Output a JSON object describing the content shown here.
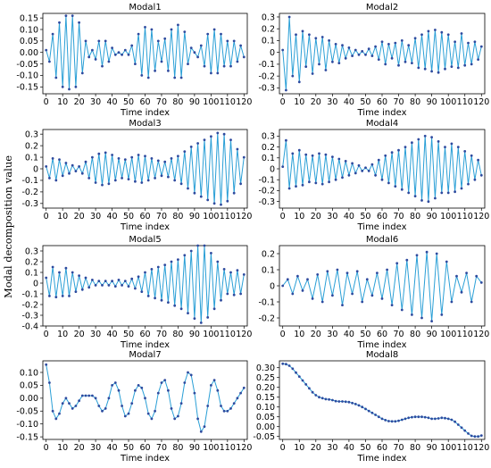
{
  "figure": {
    "ylabel": "Modal decomposition value"
  },
  "chart_data": [
    {
      "type": "line",
      "title": "Modal1",
      "xlabel": "Time index",
      "ylim": [
        -0.18,
        0.17
      ],
      "xticks": [
        0,
        10,
        20,
        30,
        40,
        50,
        60,
        70,
        80,
        90,
        100,
        110,
        120
      ],
      "yticks": [
        -0.15,
        -0.1,
        -0.05,
        0.0,
        0.05,
        0.1,
        0.15
      ],
      "ytick_labels": [
        "-0.15",
        "-0.10",
        "-0.05",
        "0.00",
        "0.05",
        "0.10",
        "0.15"
      ],
      "x": [
        0,
        2,
        4,
        6,
        8,
        10,
        12,
        14,
        16,
        18,
        20,
        22,
        24,
        26,
        28,
        30,
        32,
        34,
        36,
        38,
        40,
        42,
        44,
        46,
        48,
        50,
        52,
        54,
        56,
        58,
        60,
        62,
        64,
        66,
        68,
        70,
        72,
        74,
        76,
        78,
        80,
        82,
        84,
        86,
        88,
        90,
        92,
        94,
        96,
        98,
        100,
        102,
        104,
        106,
        108,
        110,
        112,
        114,
        116,
        118,
        120
      ],
      "y": [
        0.01,
        -0.04,
        0.08,
        -0.11,
        0.13,
        -0.15,
        0.16,
        -0.16,
        0.16,
        -0.15,
        0.13,
        -0.09,
        0.05,
        -0.02,
        0.01,
        -0.03,
        0.05,
        -0.06,
        0.05,
        -0.04,
        0.02,
        -0.01,
        0.0,
        -0.01,
        0.01,
        -0.01,
        0.03,
        -0.05,
        0.08,
        -0.1,
        0.11,
        -0.11,
        0.1,
        -0.08,
        0.05,
        -0.04,
        0.06,
        -0.08,
        0.1,
        -0.11,
        0.12,
        -0.11,
        0.09,
        -0.05,
        0.02,
        -0.0,
        -0.02,
        0.03,
        -0.06,
        0.08,
        -0.09,
        0.1,
        -0.09,
        0.08,
        -0.06,
        0.05,
        -0.06,
        0.05,
        -0.04,
        0.03,
        -0.02
      ]
    },
    {
      "type": "line",
      "title": "Modal2",
      "xlabel": "Time index",
      "ylim": [
        -0.35,
        0.33
      ],
      "xticks": [
        0,
        10,
        20,
        30,
        40,
        50,
        60,
        70,
        80,
        90,
        100,
        110,
        120
      ],
      "yticks": [
        -0.3,
        -0.2,
        -0.1,
        0,
        0.1,
        0.2,
        0.3
      ],
      "ytick_labels": [
        "-0.3",
        "-0.2",
        "-0.1",
        "0",
        "0.1",
        "0.2",
        "0.3"
      ],
      "x": [
        0,
        2,
        4,
        6,
        8,
        10,
        12,
        14,
        16,
        18,
        20,
        22,
        24,
        26,
        28,
        30,
        32,
        34,
        36,
        38,
        40,
        42,
        44,
        46,
        48,
        50,
        52,
        54,
        56,
        58,
        60,
        62,
        64,
        66,
        68,
        70,
        72,
        74,
        76,
        78,
        80,
        82,
        84,
        86,
        88,
        90,
        92,
        94,
        96,
        98,
        100,
        102,
        104,
        106,
        108,
        110,
        112,
        114,
        116,
        118,
        120
      ],
      "y": [
        0.02,
        -0.32,
        0.3,
        -0.2,
        0.15,
        -0.25,
        0.18,
        -0.12,
        0.15,
        -0.18,
        0.12,
        -0.1,
        0.13,
        -0.15,
        0.1,
        -0.08,
        0.07,
        -0.09,
        0.06,
        -0.05,
        0.04,
        -0.03,
        0.02,
        -0.02,
        0.01,
        -0.02,
        0.03,
        -0.03,
        0.05,
        -0.06,
        0.09,
        -0.1,
        0.07,
        -0.05,
        0.08,
        -0.11,
        0.1,
        -0.08,
        0.06,
        -0.09,
        0.12,
        -0.13,
        0.15,
        -0.14,
        0.18,
        -0.16,
        0.19,
        -0.17,
        0.17,
        -0.14,
        0.15,
        -0.12,
        0.09,
        -0.13,
        0.16,
        -0.11,
        0.08,
        -0.1,
        0.09,
        -0.06,
        0.05
      ]
    },
    {
      "type": "line",
      "title": "Modal3",
      "xlabel": "Time index",
      "ylim": [
        -0.34,
        0.34
      ],
      "xticks": [
        0,
        10,
        20,
        30,
        40,
        50,
        60,
        70,
        80,
        90,
        100,
        110,
        120
      ],
      "yticks": [
        -0.3,
        -0.2,
        -0.1,
        0,
        0.1,
        0.2,
        0.3
      ],
      "ytick_labels": [
        "-0.3",
        "-0.2",
        "-0.1",
        "0",
        "0.1",
        "0.2",
        "0.3"
      ],
      "x": [
        0,
        2,
        4,
        6,
        8,
        10,
        12,
        14,
        16,
        18,
        20,
        22,
        24,
        26,
        28,
        30,
        32,
        34,
        36,
        38,
        40,
        42,
        44,
        46,
        48,
        50,
        52,
        54,
        56,
        58,
        60,
        62,
        64,
        66,
        68,
        70,
        72,
        74,
        76,
        78,
        80,
        82,
        84,
        86,
        88,
        90,
        92,
        94,
        96,
        98,
        100,
        102,
        104,
        106,
        108,
        110,
        112,
        114,
        116,
        118,
        120
      ],
      "y": [
        0.02,
        -0.08,
        0.09,
        -0.1,
        0.08,
        -0.06,
        0.05,
        -0.04,
        0.03,
        -0.02,
        0.02,
        -0.04,
        0.06,
        -0.08,
        0.1,
        -0.12,
        0.13,
        -0.14,
        0.14,
        -0.13,
        0.12,
        -0.1,
        0.09,
        -0.08,
        0.08,
        -0.09,
        0.1,
        -0.11,
        0.12,
        -0.12,
        0.11,
        -0.1,
        0.09,
        -0.08,
        0.07,
        -0.06,
        0.06,
        -0.07,
        0.09,
        -0.1,
        0.11,
        -0.13,
        0.15,
        -0.17,
        0.19,
        -0.21,
        0.22,
        -0.24,
        0.25,
        -0.27,
        0.28,
        -0.3,
        0.31,
        -0.31,
        0.3,
        -0.28,
        0.25,
        -0.21,
        0.17,
        -0.13,
        0.1
      ]
    },
    {
      "type": "line",
      "title": "Modal4",
      "xlabel": "Time index",
      "ylim": [
        -0.36,
        0.36
      ],
      "xticks": [
        0,
        10,
        20,
        30,
        40,
        50,
        60,
        70,
        80,
        90,
        100,
        110,
        120
      ],
      "yticks": [
        -0.3,
        -0.2,
        -0.1,
        0,
        0.1,
        0.2,
        0.3
      ],
      "ytick_labels": [
        "-0.3",
        "-0.2",
        "-0.1",
        "0",
        "0.1",
        "0.2",
        "0.3"
      ],
      "x": [
        0,
        2,
        4,
        6,
        8,
        10,
        12,
        14,
        16,
        18,
        20,
        22,
        24,
        26,
        28,
        30,
        32,
        34,
        36,
        38,
        40,
        42,
        44,
        46,
        48,
        50,
        52,
        54,
        56,
        58,
        60,
        62,
        64,
        66,
        68,
        70,
        72,
        74,
        76,
        78,
        80,
        82,
        84,
        86,
        88,
        90,
        92,
        94,
        96,
        98,
        100,
        102,
        104,
        106,
        108,
        110,
        112,
        114,
        116,
        118,
        120
      ],
      "y": [
        0.02,
        0.26,
        -0.18,
        0.14,
        -0.16,
        0.17,
        -0.15,
        0.13,
        -0.12,
        0.12,
        -0.13,
        0.14,
        -0.14,
        0.13,
        -0.12,
        0.11,
        -0.1,
        0.09,
        -0.08,
        0.07,
        -0.06,
        0.05,
        -0.04,
        0.03,
        -0.02,
        0.01,
        -0.02,
        0.04,
        -0.06,
        0.08,
        -0.1,
        0.12,
        -0.13,
        0.15,
        -0.16,
        0.17,
        -0.19,
        0.2,
        -0.22,
        0.24,
        -0.25,
        0.27,
        -0.29,
        0.3,
        -0.3,
        0.29,
        -0.27,
        0.25,
        -0.22,
        0.2,
        -0.22,
        0.23,
        -0.21,
        0.2,
        -0.18,
        0.16,
        -0.14,
        0.12,
        -0.1,
        0.08,
        -0.06
      ]
    },
    {
      "type": "line",
      "title": "Modal5",
      "xlabel": "Time index",
      "ylim": [
        -0.4,
        0.35
      ],
      "xticks": [
        0,
        10,
        20,
        30,
        40,
        50,
        60,
        70,
        80,
        90,
        100,
        110,
        120
      ],
      "yticks": [
        -0.4,
        -0.3,
        -0.2,
        -0.1,
        0,
        0.1,
        0.2,
        0.3
      ],
      "ytick_labels": [
        "-0.4",
        "-0.3",
        "-0.2",
        "-0.1",
        "0",
        "0.1",
        "0.2",
        "0.3"
      ],
      "x": [
        0,
        2,
        4,
        6,
        8,
        10,
        12,
        14,
        16,
        18,
        20,
        22,
        24,
        26,
        28,
        30,
        32,
        34,
        36,
        38,
        40,
        42,
        44,
        46,
        48,
        50,
        52,
        54,
        56,
        58,
        60,
        62,
        64,
        66,
        68,
        70,
        72,
        74,
        76,
        78,
        80,
        82,
        84,
        86,
        88,
        90,
        92,
        94,
        96,
        98,
        100,
        102,
        104,
        106,
        108,
        110,
        112,
        114,
        116,
        118,
        120
      ],
      "y": [
        0.05,
        -0.12,
        0.15,
        -0.13,
        0.1,
        -0.12,
        0.14,
        -0.12,
        0.1,
        -0.08,
        0.07,
        -0.06,
        0.05,
        -0.04,
        0.03,
        -0.02,
        0.02,
        -0.02,
        0.02,
        -0.02,
        0.02,
        -0.03,
        0.03,
        -0.02,
        0.02,
        -0.03,
        0.04,
        -0.05,
        0.06,
        -0.08,
        0.1,
        -0.12,
        0.13,
        -0.14,
        0.15,
        -0.16,
        0.17,
        -0.18,
        0.2,
        -0.21,
        0.22,
        -0.24,
        0.26,
        -0.28,
        0.3,
        -0.33,
        0.35,
        -0.37,
        0.35,
        -0.32,
        0.28,
        -0.24,
        0.2,
        -0.16,
        0.13,
        -0.1,
        0.1,
        -0.11,
        0.12,
        -0.1,
        0.08
      ]
    },
    {
      "type": "line",
      "title": "Modal6",
      "xlabel": "Time index",
      "ylim": [
        -0.25,
        0.25
      ],
      "xticks": [
        0,
        10,
        20,
        30,
        40,
        50,
        60,
        70,
        80,
        90,
        100,
        110,
        120
      ],
      "yticks": [
        -0.2,
        -0.1,
        0,
        0.1,
        0.2
      ],
      "ytick_labels": [
        "-0.2",
        "-0.1",
        "0",
        "0.1",
        "0.2"
      ],
      "x": [
        0,
        3,
        6,
        9,
        12,
        15,
        18,
        21,
        24,
        27,
        30,
        33,
        36,
        39,
        42,
        45,
        48,
        51,
        54,
        57,
        60,
        63,
        66,
        69,
        72,
        75,
        78,
        81,
        84,
        87,
        90,
        93,
        96,
        99,
        102,
        105,
        108,
        111,
        114,
        117,
        120
      ],
      "y": [
        0.0,
        0.04,
        -0.05,
        0.06,
        -0.03,
        0.04,
        -0.08,
        0.07,
        -0.1,
        0.09,
        -0.06,
        0.1,
        -0.12,
        0.08,
        -0.05,
        0.09,
        -0.1,
        0.04,
        -0.06,
        0.08,
        -0.08,
        0.1,
        -0.12,
        0.14,
        -0.15,
        0.16,
        -0.18,
        0.19,
        -0.2,
        0.21,
        -0.22,
        0.2,
        -0.18,
        0.15,
        -0.1,
        0.06,
        -0.04,
        0.08,
        -0.1,
        0.06,
        0.02
      ]
    },
    {
      "type": "line",
      "title": "Modal7",
      "xlabel": "Time index",
      "ylim": [
        -0.16,
        0.145
      ],
      "xticks": [
        0,
        10,
        20,
        30,
        40,
        50,
        60,
        70,
        80,
        90,
        100,
        110,
        120
      ],
      "yticks": [
        -0.15,
        -0.1,
        -0.05,
        0.0,
        0.05,
        0.1
      ],
      "ytick_labels": [
        "-0.15",
        "-0.10",
        "-0.05",
        "0.00",
        "0.05",
        "0.10"
      ],
      "x": [
        0,
        2,
        4,
        6,
        8,
        10,
        12,
        14,
        16,
        18,
        20,
        22,
        24,
        26,
        28,
        30,
        32,
        34,
        36,
        38,
        40,
        42,
        44,
        46,
        48,
        50,
        52,
        54,
        56,
        58,
        60,
        62,
        64,
        66,
        68,
        70,
        72,
        74,
        76,
        78,
        80,
        82,
        84,
        86,
        88,
        90,
        92,
        94,
        96,
        98,
        100,
        102,
        104,
        106,
        108,
        110,
        112,
        114,
        116,
        118,
        120
      ],
      "y": [
        0.13,
        0.06,
        -0.05,
        -0.08,
        -0.06,
        -0.02,
        0.0,
        -0.02,
        -0.04,
        -0.03,
        -0.01,
        0.01,
        0.01,
        0.01,
        0.01,
        0.0,
        -0.03,
        -0.05,
        -0.04,
        0.0,
        0.05,
        0.06,
        0.03,
        -0.03,
        -0.07,
        -0.06,
        -0.02,
        0.03,
        0.05,
        0.04,
        0.0,
        -0.06,
        -0.08,
        -0.05,
        0.02,
        0.06,
        0.07,
        0.03,
        -0.04,
        -0.08,
        -0.07,
        -0.02,
        0.06,
        0.1,
        0.09,
        0.02,
        -0.08,
        -0.13,
        -0.11,
        -0.03,
        0.05,
        0.07,
        0.03,
        -0.03,
        -0.05,
        -0.05,
        -0.04,
        -0.02,
        0.0,
        0.02,
        0.04
      ]
    },
    {
      "type": "line",
      "title": "Modal8",
      "xlabel": "Time index",
      "ylim": [
        -0.065,
        0.335
      ],
      "xticks": [
        0,
        10,
        20,
        30,
        40,
        50,
        60,
        70,
        80,
        90,
        100,
        110,
        120
      ],
      "yticks": [
        -0.05,
        0.0,
        0.05,
        0.1,
        0.15,
        0.2,
        0.25,
        0.3
      ],
      "ytick_labels": [
        "-0.05",
        "0.00",
        "0.05",
        "0.10",
        "0.15",
        "0.20",
        "0.25",
        "0.30"
      ],
      "x": [
        0,
        2,
        4,
        6,
        8,
        10,
        12,
        14,
        16,
        18,
        20,
        22,
        24,
        26,
        28,
        30,
        32,
        34,
        36,
        38,
        40,
        42,
        44,
        46,
        48,
        50,
        52,
        54,
        56,
        58,
        60,
        62,
        64,
        66,
        68,
        70,
        72,
        74,
        76,
        78,
        80,
        82,
        84,
        86,
        88,
        90,
        92,
        94,
        96,
        98,
        100,
        102,
        104,
        106,
        108,
        110,
        112,
        114,
        116,
        118,
        120
      ],
      "y": [
        0.32,
        0.318,
        0.31,
        0.295,
        0.275,
        0.255,
        0.235,
        0.215,
        0.195,
        0.175,
        0.16,
        0.15,
        0.145,
        0.14,
        0.138,
        0.135,
        0.13,
        0.128,
        0.128,
        0.127,
        0.125,
        0.12,
        0.115,
        0.108,
        0.1,
        0.09,
        0.08,
        0.07,
        0.06,
        0.05,
        0.04,
        0.033,
        0.028,
        0.027,
        0.027,
        0.03,
        0.035,
        0.04,
        0.045,
        0.048,
        0.05,
        0.05,
        0.05,
        0.048,
        0.045,
        0.04,
        0.04,
        0.042,
        0.045,
        0.043,
        0.04,
        0.035,
        0.025,
        0.01,
        -0.005,
        -0.02,
        -0.035,
        -0.047,
        -0.05,
        -0.05,
        -0.045
      ]
    }
  ]
}
